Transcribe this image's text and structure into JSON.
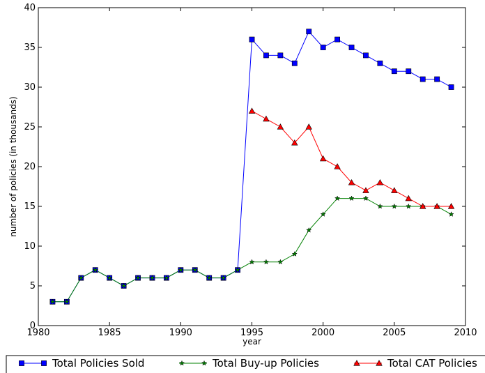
{
  "chart_data": {
    "type": "line",
    "title": "",
    "xlabel": "year",
    "ylabel": "number of policies (in thousands)",
    "xlim": [
      1980,
      2010
    ],
    "ylim": [
      0,
      40
    ],
    "xticks": [
      1980,
      1985,
      1990,
      1995,
      2000,
      2005,
      2010
    ],
    "yticks": [
      0,
      5,
      10,
      15,
      20,
      25,
      30,
      35,
      40
    ],
    "grid": false,
    "legend_position": "bottom",
    "series": [
      {
        "name": "Total Policies Sold",
        "color": "#0000ff",
        "marker": "square",
        "x": [
          1981,
          1982,
          1983,
          1984,
          1985,
          1986,
          1987,
          1988,
          1989,
          1990,
          1991,
          1992,
          1993,
          1994,
          1995,
          1996,
          1997,
          1998,
          1999,
          2000,
          2001,
          2002,
          2003,
          2004,
          2005,
          2006,
          2007,
          2008,
          2009
        ],
        "values": [
          3,
          3,
          6,
          7,
          6,
          5,
          6,
          6,
          6,
          7,
          7,
          6,
          6,
          7,
          36,
          34,
          34,
          33,
          37,
          35,
          36,
          35,
          34,
          33,
          32,
          32,
          31,
          31,
          30
        ]
      },
      {
        "name": "Total Buy-up Policies",
        "color": "#008000",
        "marker": "star",
        "x": [
          1981,
          1982,
          1983,
          1984,
          1985,
          1986,
          1987,
          1988,
          1989,
          1990,
          1991,
          1992,
          1993,
          1994,
          1995,
          1996,
          1997,
          1998,
          1999,
          2000,
          2001,
          2002,
          2003,
          2004,
          2005,
          2006,
          2007,
          2008,
          2009
        ],
        "values": [
          3,
          3,
          6,
          7,
          6,
          5,
          6,
          6,
          6,
          7,
          7,
          6,
          6,
          7,
          8,
          8,
          8,
          9,
          12,
          14,
          16,
          16,
          16,
          15,
          15,
          15,
          15,
          15,
          14
        ]
      },
      {
        "name": "Total CAT Policies",
        "color": "#ff0000",
        "marker": "triangle",
        "x": [
          1995,
          1996,
          1997,
          1998,
          1999,
          2000,
          2001,
          2002,
          2003,
          2004,
          2005,
          2006,
          2007,
          2008,
          2009
        ],
        "values": [
          27,
          26,
          25,
          23,
          25,
          21,
          20,
          18,
          17,
          18,
          17,
          16,
          15,
          15,
          15
        ]
      }
    ]
  }
}
